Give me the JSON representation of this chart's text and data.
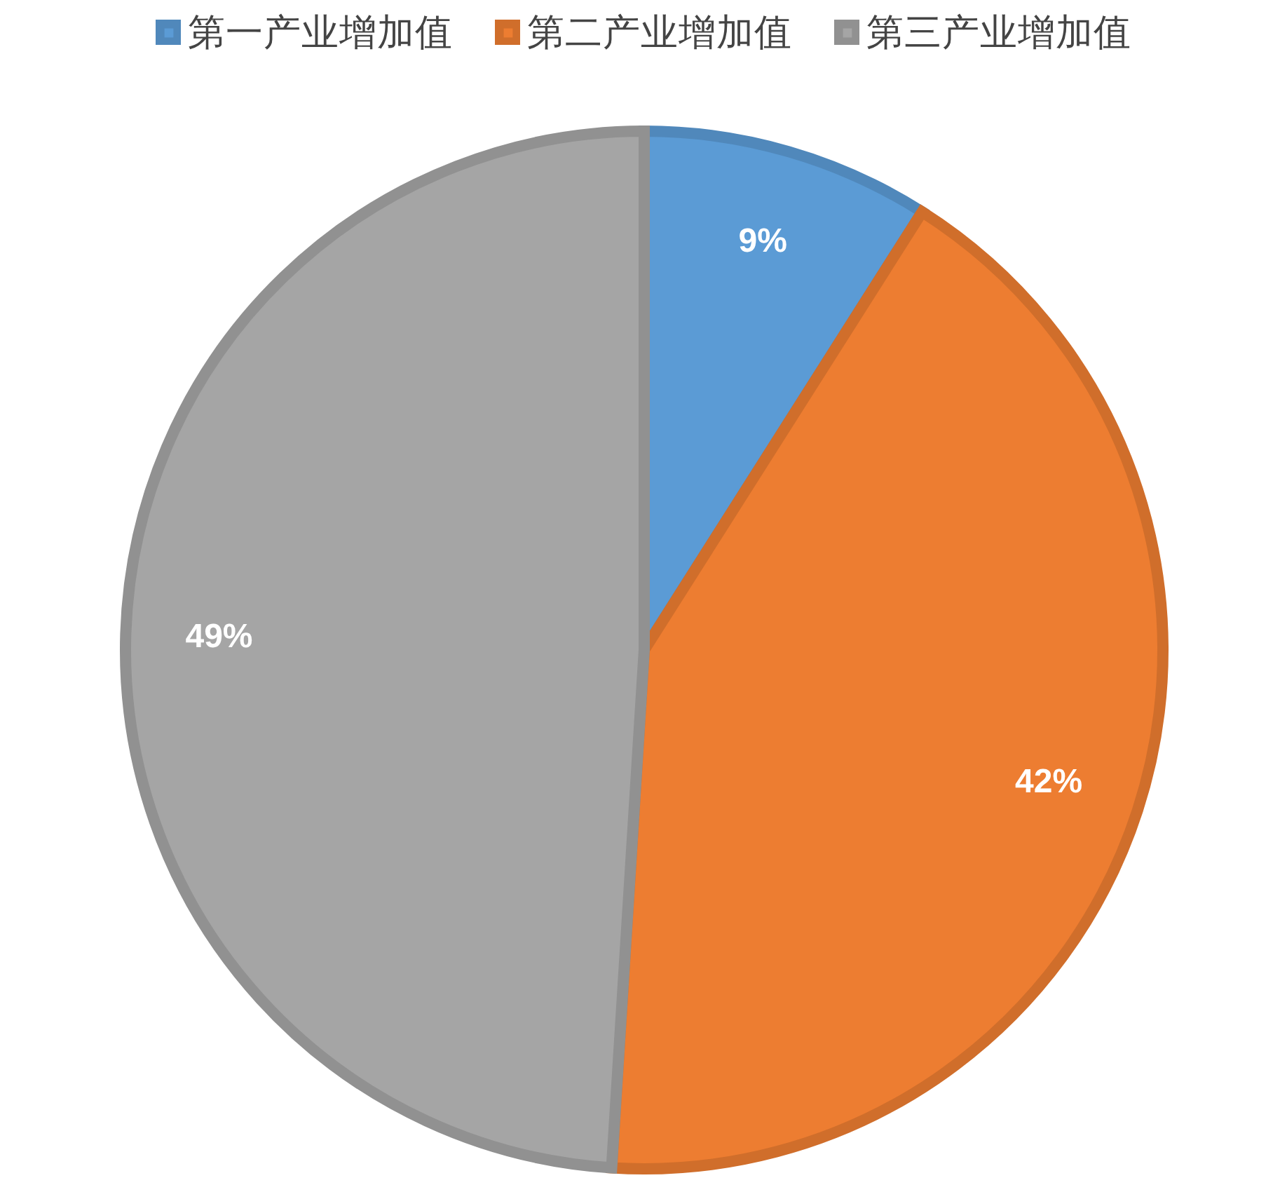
{
  "chart_data": {
    "type": "pie",
    "categories": [
      "第一产业增加值",
      "第二产业增加值",
      "第三产业增加值"
    ],
    "values": [
      9,
      42,
      49
    ],
    "colors": [
      "#5b9bd5",
      "#ed7d31",
      "#a5a5a5"
    ],
    "value_labels": [
      "9%",
      "42%",
      "49%"
    ],
    "legend": "top"
  }
}
